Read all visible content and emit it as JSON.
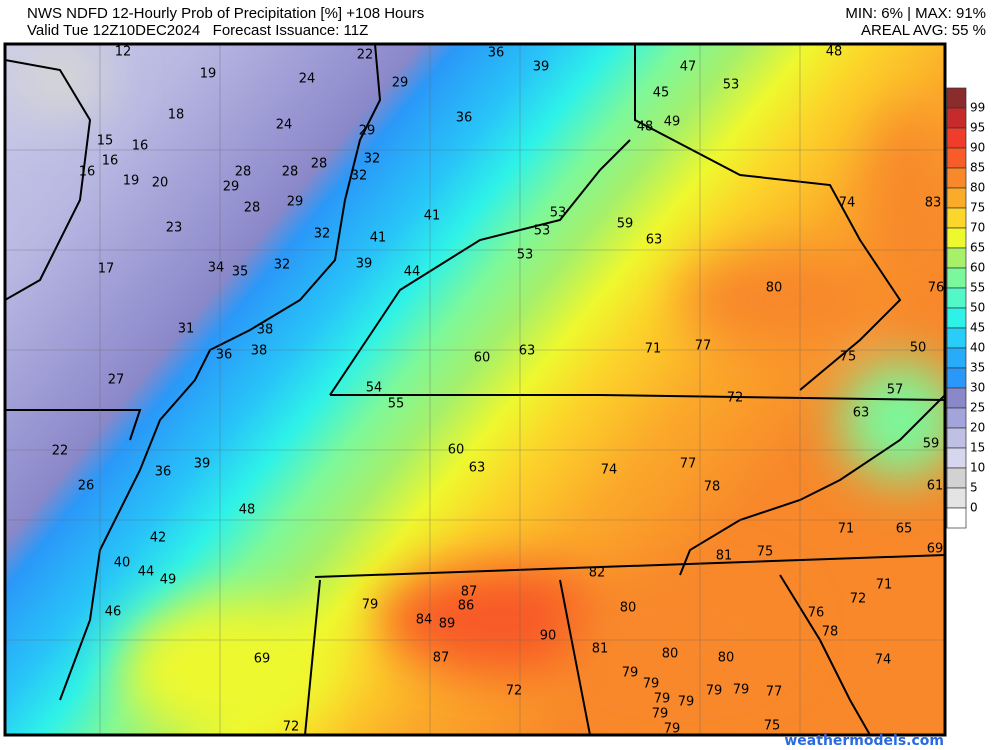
{
  "header": {
    "title": "NWS NDFD 12-Hourly Prob of Precipitation [%] +108 Hours",
    "valid": "Valid Tue 12Z10DEC2024   Forecast Issuance: 11Z",
    "minmax": "MIN: 6% | MAX: 91%",
    "areal_avg": "AREAL AVG: 55 %"
  },
  "legend": {
    "labels": [
      "99",
      "95",
      "90",
      "85",
      "80",
      "75",
      "70",
      "65",
      "60",
      "55",
      "50",
      "45",
      "40",
      "35",
      "30",
      "25",
      "20",
      "15",
      "10",
      "5",
      "0"
    ],
    "colors": [
      "#8b2c2c",
      "#c62a2a",
      "#f03c2a",
      "#f85c28",
      "#f8882a",
      "#fbab2a",
      "#fcd62b",
      "#eef82e",
      "#a8f06a",
      "#7cf89c",
      "#52f8c8",
      "#2ef2e8",
      "#28cdf8",
      "#28abf8",
      "#2a98f8",
      "#8a88c8",
      "#a4a4dc",
      "#c0c0e4",
      "#d6d6ef",
      "#d2d2d2",
      "#e4e4e4",
      "#ffffff"
    ]
  },
  "map": {
    "values": [
      "12",
      "36",
      "39",
      "22",
      "48",
      "19",
      "24",
      "29",
      "47",
      "53",
      "45",
      "18",
      "36",
      "24",
      "29",
      "48",
      "49",
      "15",
      "16",
      "16",
      "32",
      "28",
      "28",
      "28",
      "16",
      "19",
      "20",
      "29",
      "32",
      "74",
      "83",
      "28",
      "29",
      "41",
      "53",
      "53",
      "59",
      "23",
      "32",
      "41",
      "63",
      "34",
      "35",
      "32",
      "39",
      "44",
      "53",
      "17",
      "80",
      "76",
      "31",
      "38",
      "38",
      "36",
      "60",
      "63",
      "71",
      "77",
      "75",
      "50",
      "27",
      "57",
      "54",
      "55",
      "72",
      "63",
      "22",
      "59",
      "60",
      "63",
      "74",
      "77",
      "36",
      "39",
      "26",
      "78",
      "61",
      "48",
      "71",
      "65",
      "42",
      "81",
      "75",
      "69",
      "40",
      "44",
      "49",
      "82",
      "87",
      "79",
      "80",
      "71",
      "72",
      "46",
      "84",
      "89",
      "86",
      "76",
      "78",
      "90",
      "81",
      "80",
      "80",
      "87",
      "69",
      "74",
      "79",
      "79",
      "72",
      "79",
      "79",
      "77",
      "79",
      "79",
      "79",
      "79",
      "72",
      "75"
    ],
    "highlight_value_color": "#ffffff"
  },
  "watermark": "weathermodels.com"
}
